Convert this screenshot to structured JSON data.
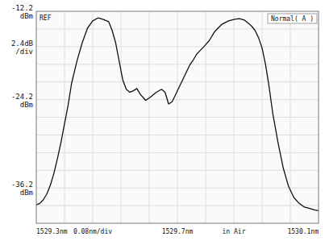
{
  "chart_data": {
    "type": "line",
    "x": [
      1529.3,
      1529.31,
      1529.32,
      1529.33,
      1529.34,
      1529.35,
      1529.36,
      1529.37,
      1529.38,
      1529.39,
      1529.4,
      1529.415,
      1529.43,
      1529.445,
      1529.46,
      1529.475,
      1529.49,
      1529.505,
      1529.515,
      1529.525,
      1529.535,
      1529.545,
      1529.555,
      1529.565,
      1529.575,
      1529.585,
      1529.595,
      1529.61,
      1529.625,
      1529.64,
      1529.655,
      1529.665,
      1529.675,
      1529.685,
      1529.695,
      1529.705,
      1529.715,
      1529.725,
      1529.735,
      1529.745,
      1529.755,
      1529.765,
      1529.775,
      1529.79,
      1529.805,
      1529.825,
      1529.845,
      1529.86,
      1529.875,
      1529.89,
      1529.9,
      1529.91,
      1529.92,
      1529.93,
      1529.94,
      1529.95,
      1529.96,
      1529.97,
      1529.985,
      1530.0,
      1530.015,
      1530.03,
      1530.045,
      1530.06,
      1530.075,
      1530.09,
      1530.1
    ],
    "values": [
      -38.5,
      -38.3,
      -37.8,
      -37.0,
      -35.8,
      -34.2,
      -32.2,
      -30.0,
      -27.5,
      -25.0,
      -22.0,
      -19.0,
      -16.5,
      -14.5,
      -13.5,
      -13.1,
      -13.3,
      -13.6,
      -14.8,
      -16.5,
      -19.0,
      -21.5,
      -22.8,
      -23.2,
      -23.0,
      -22.7,
      -23.5,
      -24.3,
      -23.8,
      -23.2,
      -22.8,
      -23.2,
      -24.8,
      -24.5,
      -23.5,
      -22.5,
      -21.5,
      -20.5,
      -19.5,
      -18.8,
      -18.0,
      -17.5,
      -17.0,
      -16.2,
      -15.0,
      -14.0,
      -13.5,
      -13.3,
      -13.2,
      -13.4,
      -13.8,
      -14.2,
      -14.8,
      -15.8,
      -17.2,
      -19.5,
      -22.5,
      -26.0,
      -30.0,
      -33.5,
      -36.0,
      -37.5,
      -38.3,
      -38.8,
      -39.0,
      -39.2,
      -39.3
    ],
    "color": "#111111",
    "xlim": [
      1529.3,
      1530.1
    ],
    "xticks": [
      1529.3,
      1529.38,
      1529.46,
      1529.54,
      1529.62,
      1529.7,
      1529.78,
      1529.86,
      1529.94,
      1530.02,
      1530.1
    ],
    "ylim": [
      -41.0,
      -12.2
    ],
    "yticks": [
      -41.0,
      -38.6,
      -36.2,
      -33.8,
      -31.4,
      -29.0,
      -26.6,
      -24.2,
      -21.8,
      -19.4,
      -17.0,
      -14.6,
      -12.2
    ],
    "grid": true,
    "tick_labels": false,
    "annotations": [
      {
        "text": "Normal( A )"
      },
      {
        "text": "REF"
      },
      {
        "text": "-12.2\ndBm",
        "y": -12.2
      },
      {
        "text": "2.4dB\n/div",
        "y": -17.0
      },
      {
        "text": "-24.2\ndBm",
        "y": -24.2
      },
      {
        "text": "-36.2\ndBm",
        "y": -36.2
      },
      {
        "text": "1529.3nm",
        "x": 1529.3
      },
      {
        "text": "0.08nm/div",
        "x": 1529.46
      },
      {
        "text": "1529.7nm",
        "x": 1529.7
      },
      {
        "text": "in Air",
        "x": 1529.86
      },
      {
        "text": "1530.1nm",
        "x": 1530.1
      }
    ]
  }
}
